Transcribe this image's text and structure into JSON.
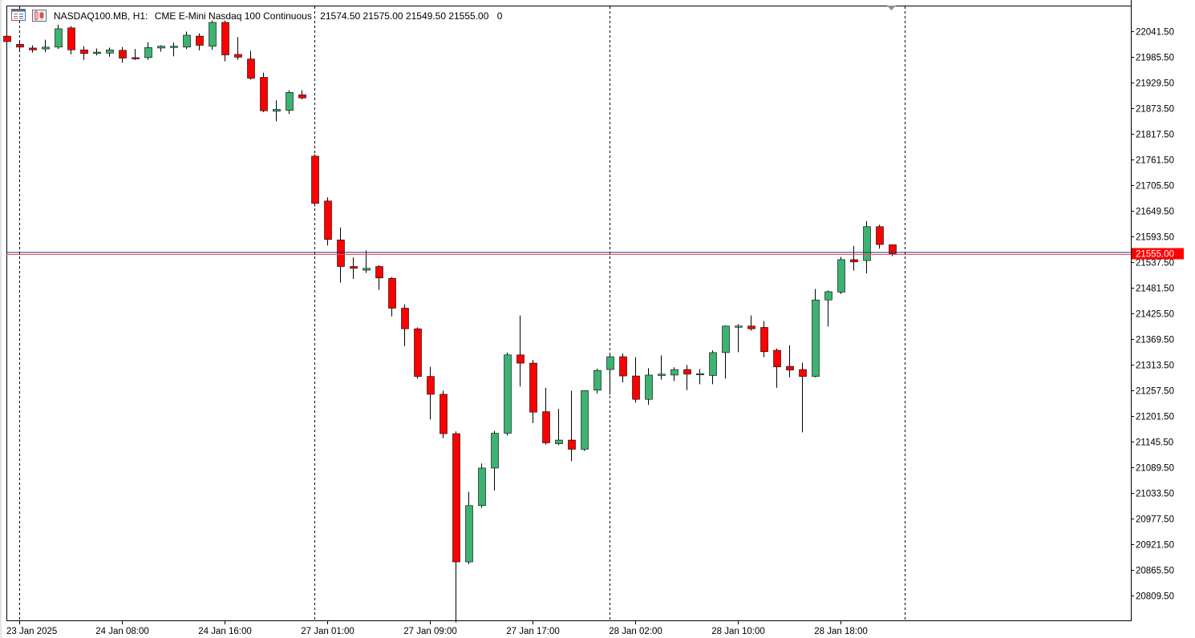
{
  "header": {
    "symbol": "NASDAQ100.MB, H1:",
    "description": "CME E-Mini Nasdaq 100 Continuous",
    "ohlc": "21574.50 21575.00 21549.50 21555.00",
    "volume": "0"
  },
  "icons": {
    "toolbar_left": "chart-window-icon",
    "toolbar_right": "candles-icon",
    "scroll_marker": "scroll-triangle-icon"
  },
  "colors": {
    "bull": "#3cb371",
    "bear": "#ff0000",
    "bid_line": "#ff4d4d",
    "ask_line": "#1e2b8f",
    "price_tag": "#ff0000",
    "grid_separator": "#000000",
    "highlight_candle": "#00ff00"
  },
  "chart_data": {
    "type": "candlestick",
    "current_price": "21555.00",
    "y_axis": {
      "ticks": [
        "22041.50",
        "21985.50",
        "21929.50",
        "21873.50",
        "21817.50",
        "21761.50",
        "21705.50",
        "21649.50",
        "21593.50",
        "21537.50",
        "21481.50",
        "21425.50",
        "21369.50",
        "21313.50",
        "21257.50",
        "21201.50",
        "21145.50",
        "21089.50",
        "21033.50",
        "20977.50",
        "20921.50",
        "20865.50",
        "20809.50"
      ],
      "ylim": [
        20745,
        22080
      ]
    },
    "x_axis": {
      "labels": [
        {
          "text": "23 Jan 2025",
          "bar": 1
        },
        {
          "text": "24 Jan 08:00",
          "bar": 9
        },
        {
          "text": "24 Jan 16:00",
          "bar": 17
        },
        {
          "text": "27 Jan 01:00",
          "bar": 25
        },
        {
          "text": "27 Jan 09:00",
          "bar": 33
        },
        {
          "text": "27 Jan 17:00",
          "bar": 41
        },
        {
          "text": "28 Jan 02:00",
          "bar": 49
        },
        {
          "text": "28 Jan 10:00",
          "bar": 57
        },
        {
          "text": "28 Jan 18:00",
          "bar": 65
        }
      ],
      "period_separators": [
        1,
        24,
        47,
        70
      ]
    },
    "candles": [
      {
        "o": 22030,
        "h": 22034,
        "l": 22010,
        "c": 22018
      },
      {
        "o": 22012,
        "h": 22020,
        "l": 22000,
        "c": 22006
      },
      {
        "o": 22004,
        "h": 22010,
        "l": 21994,
        "c": 22000
      },
      {
        "o": 22002,
        "h": 22022,
        "l": 21995,
        "c": 22006
      },
      {
        "o": 22006,
        "h": 22055,
        "l": 22002,
        "c": 22046
      },
      {
        "o": 22048,
        "h": 22052,
        "l": 21990,
        "c": 22000
      },
      {
        "o": 22000,
        "h": 22008,
        "l": 21978,
        "c": 21992
      },
      {
        "o": 21992,
        "h": 22003,
        "l": 21988,
        "c": 21995
      },
      {
        "o": 21993,
        "h": 22005,
        "l": 21985,
        "c": 22000
      },
      {
        "o": 21999,
        "h": 22006,
        "l": 21972,
        "c": 21982
      },
      {
        "o": 21983,
        "h": 22002,
        "l": 21978,
        "c": 21982
      },
      {
        "o": 21983,
        "h": 22017,
        "l": 21978,
        "c": 22005
      },
      {
        "o": 22004,
        "h": 22010,
        "l": 21996,
        "c": 22008
      },
      {
        "o": 22005,
        "h": 22016,
        "l": 21986,
        "c": 22008
      },
      {
        "o": 22006,
        "h": 22040,
        "l": 22002,
        "c": 22032
      },
      {
        "o": 22030,
        "h": 22036,
        "l": 21999,
        "c": 22010
      },
      {
        "o": 22008,
        "h": 22064,
        "l": 22000,
        "c": 22060
      },
      {
        "o": 22060,
        "h": 22064,
        "l": 21975,
        "c": 21989
      },
      {
        "o": 21990,
        "h": 22028,
        "l": 21978,
        "c": 21984
      },
      {
        "o": 21980,
        "h": 21998,
        "l": 21935,
        "c": 21938
      },
      {
        "o": 21940,
        "h": 21950,
        "l": 21864,
        "c": 21867
      },
      {
        "o": 21866,
        "h": 21890,
        "l": 21844,
        "c": 21870
      },
      {
        "o": 21868,
        "h": 21912,
        "l": 21860,
        "c": 21907
      },
      {
        "o": 21902,
        "h": 21912,
        "l": 21892,
        "c": 21895
      },
      {
        "o": 21768,
        "h": 21772,
        "l": 21658,
        "c": 21665
      },
      {
        "o": 21670,
        "h": 21678,
        "l": 21573,
        "c": 21586
      },
      {
        "o": 21585,
        "h": 21612,
        "l": 21492,
        "c": 21527
      },
      {
        "o": 21527,
        "h": 21547,
        "l": 21500,
        "c": 21523
      },
      {
        "o": 21519,
        "h": 21562,
        "l": 21513,
        "c": 21523
      },
      {
        "o": 21527,
        "h": 21530,
        "l": 21476,
        "c": 21502
      },
      {
        "o": 21501,
        "h": 21504,
        "l": 21418,
        "c": 21436
      },
      {
        "o": 21436,
        "h": 21444,
        "l": 21353,
        "c": 21391
      },
      {
        "o": 21391,
        "h": 21394,
        "l": 21282,
        "c": 21287
      },
      {
        "o": 21287,
        "h": 21308,
        "l": 21193,
        "c": 21248
      },
      {
        "o": 21248,
        "h": 21256,
        "l": 21152,
        "c": 21162
      },
      {
        "o": 21162,
        "h": 21167,
        "l": 20750,
        "c": 20882
      },
      {
        "o": 20882,
        "h": 21035,
        "l": 20877,
        "c": 21005
      },
      {
        "o": 21005,
        "h": 21097,
        "l": 21000,
        "c": 21087
      },
      {
        "o": 21087,
        "h": 21168,
        "l": 21038,
        "c": 21163
      },
      {
        "o": 21163,
        "h": 21339,
        "l": 21158,
        "c": 21334
      },
      {
        "o": 21334,
        "h": 21420,
        "l": 21265,
        "c": 21316
      },
      {
        "o": 21316,
        "h": 21323,
        "l": 21185,
        "c": 21209
      },
      {
        "o": 21210,
        "h": 21262,
        "l": 21138,
        "c": 21142
      },
      {
        "o": 21140,
        "h": 21216,
        "l": 21137,
        "c": 21148
      },
      {
        "o": 21148,
        "h": 21256,
        "l": 21102,
        "c": 21128
      },
      {
        "o": 21128,
        "h": 21256,
        "l": 21124,
        "c": 21256
      },
      {
        "o": 21257,
        "h": 21304,
        "l": 21250,
        "c": 21300
      },
      {
        "o": 21302,
        "h": 21334,
        "l": 21247,
        "c": 21330
      },
      {
        "o": 21330,
        "h": 21337,
        "l": 21274,
        "c": 21288
      },
      {
        "o": 21288,
        "h": 21329,
        "l": 21230,
        "c": 21237
      },
      {
        "o": 21237,
        "h": 21305,
        "l": 21225,
        "c": 21290
      },
      {
        "o": 21289,
        "h": 21333,
        "l": 21280,
        "c": 21292
      },
      {
        "o": 21290,
        "h": 21307,
        "l": 21277,
        "c": 21302
      },
      {
        "o": 21302,
        "h": 21312,
        "l": 21257,
        "c": 21292
      },
      {
        "o": 21292,
        "h": 21303,
        "l": 21270,
        "c": 21293
      },
      {
        "o": 21289,
        "h": 21344,
        "l": 21270,
        "c": 21339
      },
      {
        "o": 21339,
        "h": 21398,
        "l": 21282,
        "c": 21397
      },
      {
        "o": 21396,
        "h": 21401,
        "l": 21340,
        "c": 21397
      },
      {
        "o": 21397,
        "h": 21420,
        "l": 21387,
        "c": 21391
      },
      {
        "o": 21394,
        "h": 21408,
        "l": 21329,
        "c": 21341
      },
      {
        "o": 21344,
        "h": 21348,
        "l": 21262,
        "c": 21308
      },
      {
        "o": 21309,
        "h": 21355,
        "l": 21285,
        "c": 21301
      },
      {
        "o": 21302,
        "h": 21317,
        "l": 21165,
        "c": 21287
      },
      {
        "o": 21287,
        "h": 21478,
        "l": 21285,
        "c": 21454
      },
      {
        "o": 21454,
        "h": 21475,
        "l": 21396,
        "c": 21472
      },
      {
        "o": 21471,
        "h": 21548,
        "l": 21467,
        "c": 21542
      },
      {
        "o": 21542,
        "h": 21572,
        "l": 21518,
        "c": 21537
      },
      {
        "o": 21540,
        "h": 21626,
        "l": 21512,
        "c": 21614
      },
      {
        "o": 21614,
        "h": 21618,
        "l": 21566,
        "c": 21575
      },
      {
        "o": 21574.5,
        "h": 21575,
        "l": 21549.5,
        "c": 21555
      }
    ]
  }
}
